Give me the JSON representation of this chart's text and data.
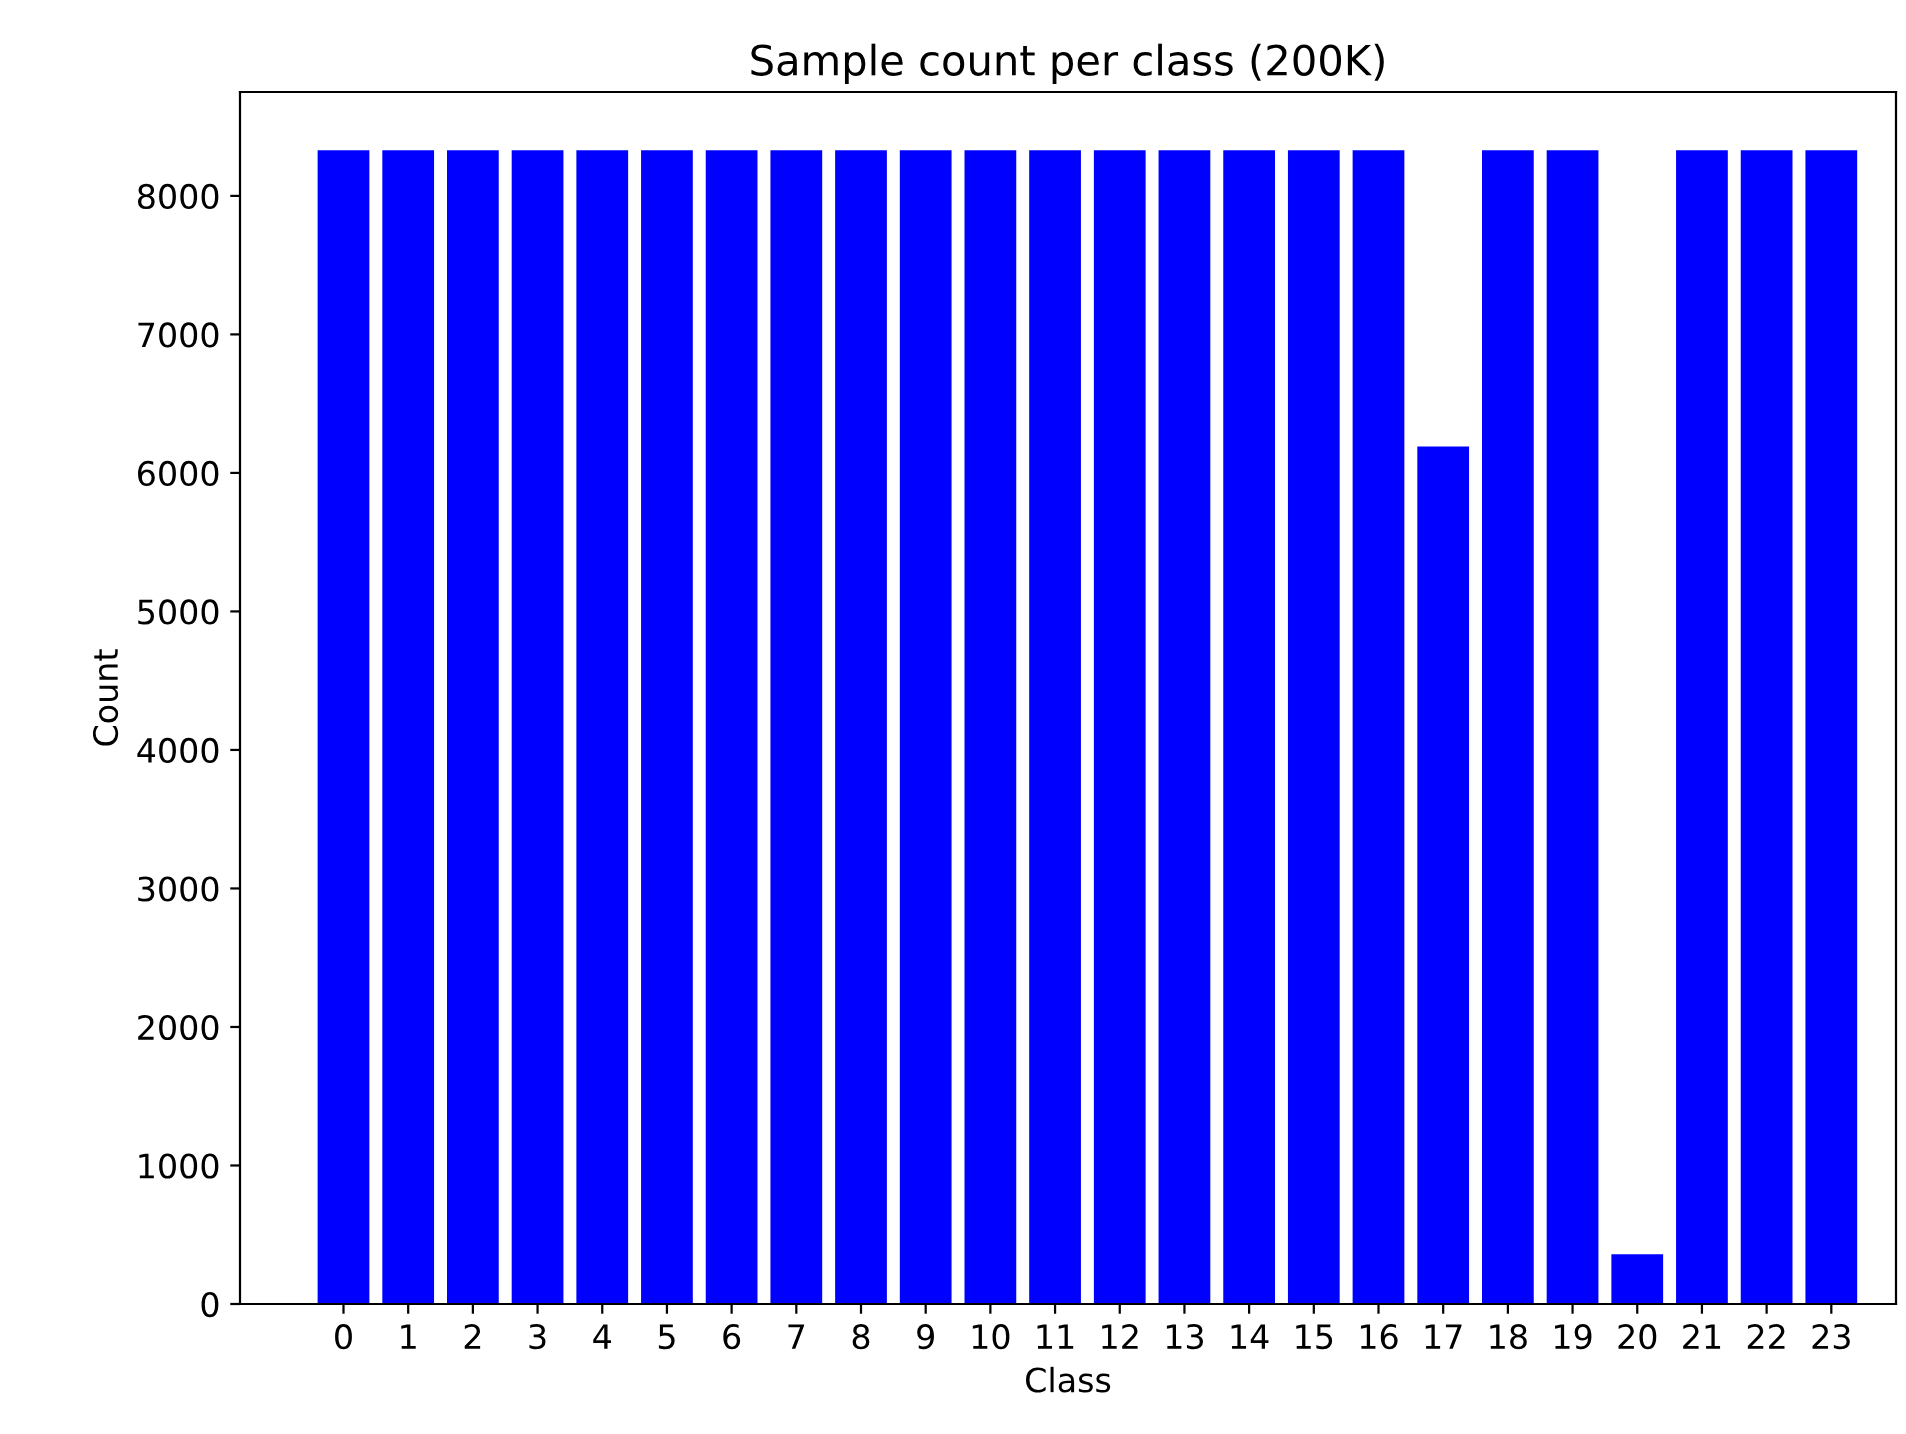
{
  "chart_data": {
    "type": "bar",
    "title": "Sample count per class (200K)",
    "xlabel": "Class",
    "ylabel": "Count",
    "x": [
      0,
      1,
      2,
      3,
      4,
      5,
      6,
      7,
      8,
      9,
      10,
      11,
      12,
      13,
      14,
      15,
      16,
      17,
      18,
      19,
      20,
      21,
      22,
      23
    ],
    "values": [
      8330,
      8330,
      8330,
      8330,
      8330,
      8330,
      8330,
      8330,
      8330,
      8330,
      8330,
      8330,
      8330,
      8330,
      8330,
      8330,
      8330,
      6190,
      8330,
      8330,
      360,
      8330,
      8330,
      8330
    ],
    "color": "#0000ff",
    "xlim": [
      -1.6,
      24.0
    ],
    "xticks": [
      0,
      1,
      2,
      3,
      4,
      5,
      6,
      7,
      8,
      9,
      10,
      11,
      12,
      13,
      14,
      15,
      16,
      17,
      18,
      19,
      20,
      21,
      22,
      23
    ],
    "ylim": [
      0,
      8750
    ],
    "yticks": [
      0,
      1000,
      2000,
      3000,
      4000,
      5000,
      6000,
      7000,
      8000
    ],
    "grid": false
  }
}
